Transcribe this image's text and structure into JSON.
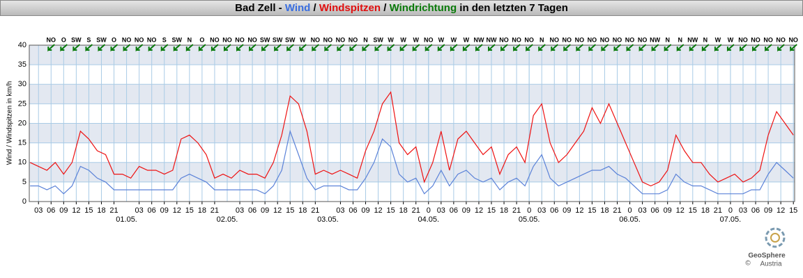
{
  "chart_data": {
    "type": "line",
    "title_parts": [
      {
        "text": "Bad Zell - ",
        "color": "#000000"
      },
      {
        "text": "Wind",
        "color": "#3b6fe0"
      },
      {
        "text": " / ",
        "color": "#000000"
      },
      {
        "text": "Windspitzen",
        "color": "#e01010"
      },
      {
        "text": " / ",
        "color": "#000000"
      },
      {
        "text": "Windrichtung",
        "color": "#0a7a0a"
      },
      {
        "text": " in den letzten 7 Tagen",
        "color": "#000000"
      }
    ],
    "y_label": "Wind / Windspitzen in km/h",
    "ylim": [
      0,
      40
    ],
    "yticks": [
      0,
      5,
      10,
      15,
      20,
      25,
      30,
      35,
      40
    ],
    "xlim": [
      0.8,
      183.3
    ],
    "xticks": [
      {
        "value": 3,
        "label": "03"
      },
      {
        "value": 6,
        "label": "06"
      },
      {
        "value": 9,
        "label": "09"
      },
      {
        "value": 12,
        "label": "12"
      },
      {
        "value": 15,
        "label": "15"
      },
      {
        "value": 18,
        "label": "18"
      },
      {
        "value": 21,
        "label": "21"
      },
      {
        "value": 27,
        "label": "03"
      },
      {
        "value": 30,
        "label": "06"
      },
      {
        "value": 33,
        "label": "09"
      },
      {
        "value": 36,
        "label": "12"
      },
      {
        "value": 39,
        "label": "15"
      },
      {
        "value": 42,
        "label": "18"
      },
      {
        "value": 45,
        "label": "21"
      },
      {
        "value": 51,
        "label": "03"
      },
      {
        "value": 54,
        "label": "06"
      },
      {
        "value": 57,
        "label": "09"
      },
      {
        "value": 60,
        "label": "12"
      },
      {
        "value": 63,
        "label": "15"
      },
      {
        "value": 66,
        "label": "18"
      },
      {
        "value": 69,
        "label": "21"
      },
      {
        "value": 75,
        "label": "03"
      },
      {
        "value": 78,
        "label": "06"
      },
      {
        "value": 81,
        "label": "09"
      },
      {
        "value": 84,
        "label": "12"
      },
      {
        "value": 87,
        "label": "15"
      },
      {
        "value": 90,
        "label": "18"
      },
      {
        "value": 93,
        "label": "21"
      },
      {
        "value": 96,
        "label": "0"
      },
      {
        "value": 99,
        "label": "03"
      },
      {
        "value": 102,
        "label": "06"
      },
      {
        "value": 105,
        "label": "09"
      },
      {
        "value": 108,
        "label": "12"
      },
      {
        "value": 111,
        "label": "15"
      },
      {
        "value": 114,
        "label": "18"
      },
      {
        "value": 117,
        "label": "21"
      },
      {
        "value": 120,
        "label": "0"
      },
      {
        "value": 123,
        "label": "03"
      },
      {
        "value": 126,
        "label": "06"
      },
      {
        "value": 129,
        "label": "09"
      },
      {
        "value": 132,
        "label": "12"
      },
      {
        "value": 135,
        "label": "15"
      },
      {
        "value": 138,
        "label": "18"
      },
      {
        "value": 141,
        "label": "21"
      },
      {
        "value": 144,
        "label": "0"
      },
      {
        "value": 147,
        "label": "03"
      },
      {
        "value": 150,
        "label": "06"
      },
      {
        "value": 153,
        "label": "09"
      },
      {
        "value": 156,
        "label": "12"
      },
      {
        "value": 159,
        "label": "15"
      },
      {
        "value": 162,
        "label": "18"
      },
      {
        "value": 165,
        "label": "21"
      },
      {
        "value": 168,
        "label": "0"
      },
      {
        "value": 171,
        "label": "03"
      },
      {
        "value": 174,
        "label": "06"
      },
      {
        "value": 177,
        "label": "09"
      },
      {
        "value": 180,
        "label": "12"
      },
      {
        "value": 183,
        "label": "15"
      }
    ],
    "date_labels": [
      {
        "value": 24,
        "label": "01.05."
      },
      {
        "value": 48,
        "label": "02.05."
      },
      {
        "value": 72,
        "label": "03.05."
      },
      {
        "value": 96,
        "label": "04.05."
      },
      {
        "value": 120,
        "label": "05.05."
      },
      {
        "value": 144,
        "label": "06.05."
      },
      {
        "value": 168,
        "label": "07.05."
      }
    ],
    "grid": true,
    "x": [
      1,
      3,
      5,
      7,
      9,
      11,
      13,
      15,
      17,
      19,
      21,
      23,
      25,
      27,
      29,
      31,
      33,
      35,
      37,
      39,
      41,
      43,
      45,
      47,
      49,
      51,
      53,
      55,
      57,
      59,
      61,
      63,
      65,
      67,
      69,
      71,
      73,
      75,
      77,
      79,
      81,
      83,
      85,
      87,
      89,
      91,
      93,
      95,
      97,
      99,
      101,
      103,
      105,
      107,
      109,
      111,
      113,
      115,
      117,
      119,
      121,
      123,
      125,
      127,
      129,
      131,
      133,
      135,
      137,
      139,
      141,
      143,
      145,
      147,
      149,
      151,
      153,
      155,
      157,
      159,
      161,
      163,
      165,
      167,
      169,
      171,
      173,
      175,
      177,
      179,
      181,
      183
    ],
    "series": [
      {
        "name": "Windspitzen",
        "color": "#ee1111",
        "values": [
          10,
          9,
          8,
          10,
          7,
          10,
          18,
          16,
          13,
          12,
          7,
          7,
          6,
          9,
          8,
          8,
          7,
          8,
          16,
          17,
          15,
          12,
          6,
          7,
          6,
          8,
          7,
          7,
          6,
          10,
          17,
          27,
          25,
          18,
          7,
          8,
          7,
          8,
          7,
          6,
          13,
          18,
          25,
          28,
          15,
          12,
          14,
          5,
          10,
          18,
          8,
          16,
          18,
          15,
          12,
          14,
          7,
          12,
          14,
          10,
          22,
          25,
          15,
          10,
          12,
          15,
          18,
          24,
          20,
          25,
          20,
          15,
          10,
          5,
          4,
          5,
          8,
          17,
          13,
          10,
          10,
          7,
          5,
          6,
          7,
          5,
          6,
          8,
          17,
          23,
          20,
          17
        ]
      },
      {
        "name": "Wind",
        "color": "#5b82d8",
        "values": [
          4,
          4,
          3,
          4,
          2,
          4,
          9,
          8,
          6,
          5,
          3,
          3,
          3,
          3,
          3,
          3,
          3,
          3,
          6,
          7,
          6,
          5,
          3,
          3,
          3,
          3,
          3,
          3,
          2,
          4,
          8,
          18,
          12,
          6,
          3,
          4,
          4,
          4,
          3,
          3,
          6,
          10,
          16,
          14,
          7,
          5,
          6,
          2,
          4,
          8,
          4,
          7,
          8,
          6,
          5,
          6,
          3,
          5,
          6,
          4,
          9,
          12,
          6,
          4,
          5,
          6,
          7,
          8,
          8,
          9,
          7,
          6,
          4,
          2,
          2,
          2,
          3,
          7,
          5,
          4,
          4,
          3,
          2,
          2,
          2,
          2,
          3,
          3,
          7,
          10,
          8,
          6
        ]
      }
    ],
    "wind_direction": {
      "color": "#0a7a0a",
      "x": [
        6,
        9,
        12,
        15,
        18,
        21,
        24,
        27,
        30,
        33,
        36,
        39,
        42,
        45,
        48,
        51,
        54,
        57,
        60,
        63,
        66,
        69,
        72,
        75,
        78,
        81,
        84,
        87,
        90,
        93,
        96,
        99,
        102,
        105,
        108,
        111,
        114,
        117,
        120,
        123,
        126,
        129,
        132,
        135,
        138,
        141,
        144,
        147,
        150,
        153,
        156,
        159,
        162,
        165,
        168,
        171,
        174,
        177,
        180,
        183
      ],
      "labels": [
        "NO",
        "O",
        "SW",
        "S",
        "SW",
        "O",
        "NO",
        "NO",
        "NO",
        "S",
        "SW",
        "N",
        "O",
        "NO",
        "NO",
        "NO",
        "NO",
        "SW",
        "SW",
        "SW",
        "W",
        "NO",
        "NO",
        "NO",
        "NO",
        "N",
        "SW",
        "W",
        "W",
        "W",
        "NO",
        "W",
        "W",
        "W",
        "NW",
        "NW",
        "NO",
        "NO",
        "NO",
        "N",
        "NO",
        "NO",
        "NO",
        "NO",
        "NO",
        "NO",
        "NO",
        "NO",
        "NW",
        "N",
        "N",
        "NW",
        "N",
        "W",
        "W",
        "NO",
        "NO",
        "NO",
        "NO",
        "NO"
      ]
    },
    "logo": {
      "name": "GeoSphere",
      "sub": "Austria",
      "copyright": "©"
    }
  }
}
